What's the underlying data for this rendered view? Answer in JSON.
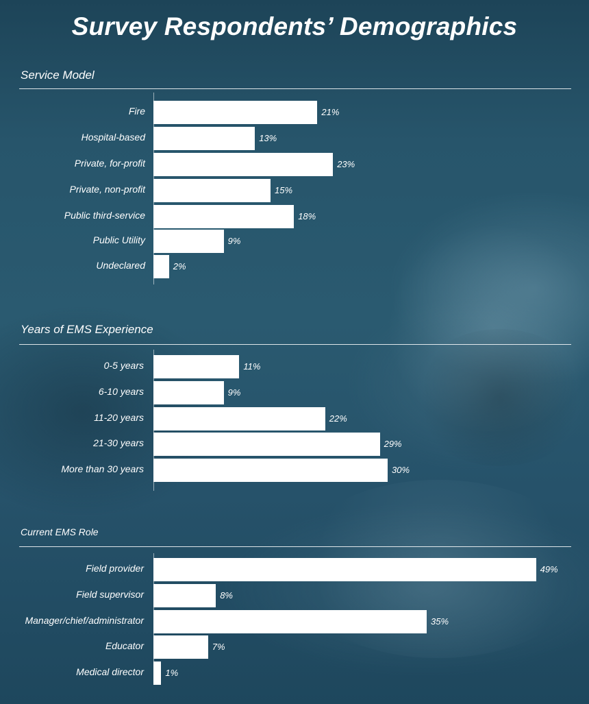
{
  "title": "Survey Respondents’ Demographics",
  "chart_data": [
    {
      "type": "bar",
      "orientation": "horizontal",
      "title": "Service Model",
      "categories": [
        "Fire",
        "Hospital-based",
        "Private, for-profit",
        "Private, non-profit",
        "Public third-service",
        "Public Utility",
        "Undeclared"
      ],
      "values": [
        21,
        13,
        23,
        15,
        18,
        9,
        2
      ],
      "value_labels": [
        "21%",
        "13%",
        "23%",
        "15%",
        "18%",
        "9%",
        "2%"
      ],
      "unit": "%",
      "xlim": [
        0,
        49
      ]
    },
    {
      "type": "bar",
      "orientation": "horizontal",
      "title": "Years of EMS Experience",
      "categories": [
        "0-5 years",
        "6-10 years",
        "11-20 years",
        "21-30 years",
        "More than 30 years"
      ],
      "values": [
        11,
        9,
        22,
        29,
        30
      ],
      "value_labels": [
        "11%",
        "9%",
        "22%",
        "29%",
        "30%"
      ],
      "unit": "%",
      "xlim": [
        0,
        49
      ]
    },
    {
      "type": "bar",
      "orientation": "horizontal",
      "title": "Current EMS Role",
      "categories": [
        "Field provider",
        "Field supervisor",
        "Manager/chief/administrator",
        "Educator",
        "Medical director"
      ],
      "values": [
        49,
        8,
        35,
        7,
        1
      ],
      "value_labels": [
        "49%",
        "8%",
        "35%",
        "7%",
        "1%"
      ],
      "unit": "%",
      "xlim": [
        0,
        49
      ]
    }
  ],
  "colors": {
    "background": "#27556b",
    "bar": "#ffffff",
    "text": "#ffffff"
  }
}
